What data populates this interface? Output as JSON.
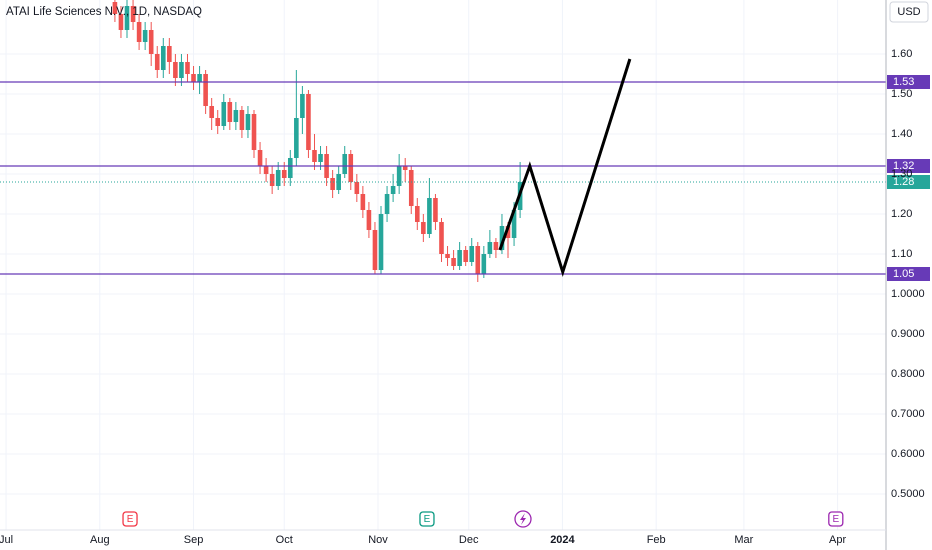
{
  "chart_data": {
    "type": "candlestick",
    "title": "ATAI Life Sciences N.V., 1D, NASDAQ",
    "currency": "USD",
    "up_color": "#26a69a",
    "down_color": "#ef5350",
    "x": [
      36,
      38,
      40,
      42,
      44,
      46,
      48,
      50,
      52,
      54,
      56,
      58,
      60,
      62,
      64,
      66,
      68,
      70,
      72,
      74,
      76,
      78,
      80,
      82,
      84,
      86,
      88,
      90,
      92,
      94,
      96,
      98,
      100,
      102,
      104,
      106,
      108,
      110,
      112,
      114,
      116,
      118,
      120,
      122,
      124,
      126,
      128,
      130,
      132,
      134,
      136,
      138,
      140,
      142,
      144,
      146,
      148,
      150,
      152,
      154,
      156,
      158,
      160,
      162,
      164,
      166,
      168,
      170
    ],
    "open": [
      1.73,
      1.7,
      1.66,
      1.72,
      1.68,
      1.63,
      1.66,
      1.6,
      1.56,
      1.62,
      1.58,
      1.54,
      1.58,
      1.55,
      1.53,
      1.55,
      1.47,
      1.44,
      1.42,
      1.48,
      1.43,
      1.46,
      1.41,
      1.45,
      1.36,
      1.32,
      1.3,
      1.27,
      1.31,
      1.29,
      1.34,
      1.44,
      1.5,
      1.36,
      1.33,
      1.35,
      1.29,
      1.26,
      1.3,
      1.35,
      1.28,
      1.25,
      1.21,
      1.16,
      1.06,
      1.2,
      1.25,
      1.27,
      1.32,
      1.31,
      1.22,
      1.18,
      1.15,
      1.24,
      1.18,
      1.1,
      1.09,
      1.07,
      1.11,
      1.08,
      1.12,
      1.05,
      1.1,
      1.13,
      1.11,
      1.17,
      1.14,
      1.21
    ],
    "high": [
      1.75,
      1.72,
      1.74,
      1.74,
      1.7,
      1.68,
      1.68,
      1.62,
      1.64,
      1.64,
      1.6,
      1.6,
      1.6,
      1.57,
      1.57,
      1.56,
      1.49,
      1.46,
      1.5,
      1.49,
      1.48,
      1.47,
      1.47,
      1.46,
      1.38,
      1.34,
      1.32,
      1.33,
      1.33,
      1.36,
      1.56,
      1.52,
      1.51,
      1.4,
      1.37,
      1.37,
      1.31,
      1.32,
      1.37,
      1.36,
      1.3,
      1.27,
      1.23,
      1.18,
      1.22,
      1.27,
      1.3,
      1.35,
      1.34,
      1.32,
      1.24,
      1.2,
      1.29,
      1.25,
      1.19,
      1.12,
      1.11,
      1.13,
      1.12,
      1.14,
      1.13,
      1.12,
      1.16,
      1.14,
      1.2,
      1.18,
      1.23,
      1.33
    ],
    "low": [
      1.68,
      1.64,
      1.64,
      1.66,
      1.61,
      1.61,
      1.57,
      1.54,
      1.54,
      1.55,
      1.52,
      1.52,
      1.53,
      1.51,
      1.5,
      1.45,
      1.41,
      1.4,
      1.41,
      1.41,
      1.41,
      1.39,
      1.39,
      1.34,
      1.3,
      1.28,
      1.25,
      1.26,
      1.27,
      1.27,
      1.32,
      1.4,
      1.34,
      1.31,
      1.31,
      1.27,
      1.24,
      1.25,
      1.29,
      1.26,
      1.23,
      1.19,
      1.14,
      1.05,
      1.05,
      1.18,
      1.23,
      1.25,
      1.28,
      1.2,
      1.16,
      1.13,
      1.14,
      1.16,
      1.08,
      1.07,
      1.06,
      1.06,
      1.07,
      1.07,
      1.03,
      1.04,
      1.09,
      1.09,
      1.1,
      1.09,
      1.12,
      1.19
    ],
    "close": [
      1.7,
      1.66,
      1.72,
      1.68,
      1.63,
      1.66,
      1.6,
      1.56,
      1.62,
      1.58,
      1.54,
      1.58,
      1.55,
      1.53,
      1.55,
      1.47,
      1.44,
      1.42,
      1.48,
      1.43,
      1.46,
      1.41,
      1.45,
      1.36,
      1.32,
      1.3,
      1.27,
      1.31,
      1.29,
      1.34,
      1.44,
      1.5,
      1.36,
      1.33,
      1.35,
      1.29,
      1.26,
      1.3,
      1.35,
      1.28,
      1.25,
      1.21,
      1.16,
      1.06,
      1.2,
      1.25,
      1.27,
      1.32,
      1.31,
      1.22,
      1.18,
      1.15,
      1.24,
      1.18,
      1.1,
      1.09,
      1.07,
      1.11,
      1.08,
      1.12,
      1.05,
      1.1,
      1.13,
      1.11,
      1.17,
      1.14,
      1.21,
      1.28
    ],
    "xlim": [
      -2,
      291
    ],
    "xticks": [
      {
        "value": 0,
        "label": "Jul"
      },
      {
        "value": 31,
        "label": "Aug"
      },
      {
        "value": 62,
        "label": "Sep"
      },
      {
        "value": 92,
        "label": "Oct"
      },
      {
        "value": 123,
        "label": "Nov"
      },
      {
        "value": 153,
        "label": "Dec"
      },
      {
        "value": 184,
        "label": "2024"
      },
      {
        "value": 215,
        "label": "Feb"
      },
      {
        "value": 244,
        "label": "Mar"
      },
      {
        "value": 275,
        "label": "Apr"
      }
    ],
    "ylim": [
      0.41,
      1.735
    ],
    "yticks": [
      {
        "value": 1.6,
        "label": "1.60"
      },
      {
        "value": 1.5,
        "label": "1.50"
      },
      {
        "value": 1.4,
        "label": "1.40"
      },
      {
        "value": 1.3,
        "label": "1.30"
      },
      {
        "value": 1.2,
        "label": "1.20"
      },
      {
        "value": 1.1,
        "label": "1.10"
      },
      {
        "value": 1,
        "label": "1.0000"
      },
      {
        "value": 0.9,
        "label": "0.9000"
      },
      {
        "value": 0.8,
        "label": "0.8000"
      },
      {
        "value": 0.7,
        "label": "0.7000"
      },
      {
        "value": 0.6,
        "label": "0.6000"
      },
      {
        "value": 0.5,
        "label": "0.5000"
      }
    ],
    "grid": true,
    "hlines": {
      "values": [
        1.53,
        1.32,
        1.05
      ],
      "color": "#673ab7"
    },
    "drawing": {
      "x": [
        163.3,
        173.2,
        184.1,
        206.3
      ],
      "y": [
        1.11,
        1.32,
        1.055,
        1.5875
      ],
      "color": "#000000"
    },
    "events": [
      {
        "x": 41,
        "label": "E",
        "color": "#f23645"
      },
      {
        "x": 139.2,
        "label": "E",
        "color": "#089981"
      },
      {
        "x": 274.4,
        "label": "E",
        "color": "#9c27b0"
      }
    ]
  }
}
